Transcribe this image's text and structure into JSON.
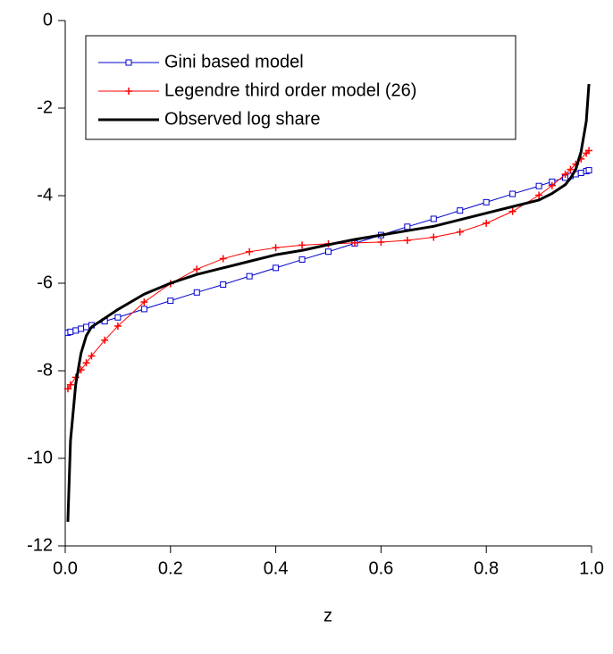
{
  "chart_data": {
    "type": "line",
    "x_label": "z",
    "x": [
      0.005,
      0.01,
      0.02,
      0.03,
      0.04,
      0.05,
      0.075,
      0.1,
      0.15,
      0.2,
      0.25,
      0.3,
      0.35,
      0.4,
      0.45,
      0.5,
      0.55,
      0.6,
      0.65,
      0.7,
      0.75,
      0.8,
      0.85,
      0.9,
      0.925,
      0.95,
      0.96,
      0.97,
      0.98,
      0.99,
      0.995
    ],
    "series": [
      {
        "name": "Gini based model",
        "color": "#0000cc",
        "marker": "square",
        "line_width": 1,
        "values": [
          -7.13,
          -7.11,
          -7.08,
          -7.04,
          -7.0,
          -6.96,
          -6.87,
          -6.78,
          -6.59,
          -6.4,
          -6.21,
          -6.03,
          -5.84,
          -5.65,
          -5.46,
          -5.28,
          -5.09,
          -4.9,
          -4.71,
          -4.53,
          -4.34,
          -4.15,
          -3.96,
          -3.78,
          -3.68,
          -3.59,
          -3.55,
          -3.51,
          -3.48,
          -3.44,
          -3.42
        ]
      },
      {
        "name": "Legendre third order model (26)",
        "color": "#ff0000",
        "marker": "plus",
        "line_width": 1,
        "values": [
          -8.41,
          -8.32,
          -8.15,
          -7.98,
          -7.82,
          -7.66,
          -7.3,
          -6.98,
          -6.43,
          -6.01,
          -5.68,
          -5.44,
          -5.28,
          -5.19,
          -5.13,
          -5.1,
          -5.08,
          -5.06,
          -5.02,
          -4.95,
          -4.83,
          -4.63,
          -4.36,
          -3.99,
          -3.77,
          -3.51,
          -3.4,
          -3.28,
          -3.16,
          -3.03,
          -2.97
        ]
      },
      {
        "name": "Observed log share",
        "color": "#000000",
        "marker": null,
        "line_width": 3,
        "values": [
          -11.45,
          -9.6,
          -8.3,
          -7.6,
          -7.2,
          -7.0,
          -6.8,
          -6.6,
          -6.25,
          -6.0,
          -5.8,
          -5.65,
          -5.5,
          -5.35,
          -5.25,
          -5.12,
          -5.0,
          -4.9,
          -4.8,
          -4.7,
          -4.55,
          -4.4,
          -4.25,
          -4.1,
          -3.95,
          -3.75,
          -3.6,
          -3.4,
          -3.0,
          -2.3,
          -1.45
        ]
      }
    ],
    "xlim": [
      0,
      1
    ],
    "xticks": [
      {
        "value": 0,
        "label": "0.0"
      },
      0.2,
      0.4,
      0.6,
      0.8,
      {
        "value": 1,
        "label": "1.0"
      }
    ],
    "ylim": [
      -12,
      0
    ],
    "yticks": [
      0,
      -2,
      -4,
      -6,
      -8,
      -10,
      -12
    ],
    "legend": "upper-left"
  }
}
